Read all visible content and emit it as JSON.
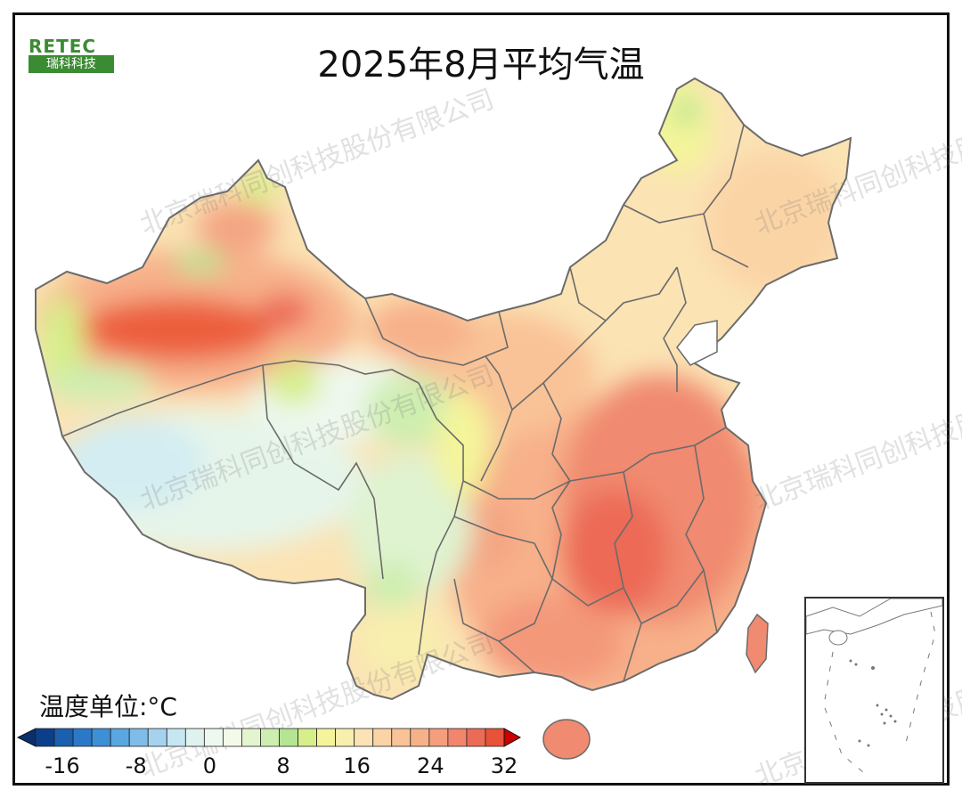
{
  "title": "2025年8月平均气温",
  "logo": {
    "mark": "RETEC",
    "name": "瑞科科技"
  },
  "watermark": "北京瑞科同创科技股份有限公司",
  "unit_label": "温度单位:°C",
  "legend": {
    "ticks": [
      "-16",
      "-8",
      "0",
      "8",
      "16",
      "24",
      "32"
    ],
    "colors": [
      "#0b3f8c",
      "#1a5fb0",
      "#2b78c8",
      "#3d8fd6",
      "#5aa6e0",
      "#7fbce8",
      "#a5d3ef",
      "#c6e6f2",
      "#dff2f0",
      "#eef8ee",
      "#f3fbe8",
      "#e3f5cf",
      "#cdeeb0",
      "#b5e592",
      "#d6ef8a",
      "#f4f59a",
      "#f8eeae",
      "#fbe3b4",
      "#fbd4a6",
      "#f9c397",
      "#f7b189",
      "#f59d7c",
      "#f1866d",
      "#ec6b57",
      "#e85236"
    ],
    "left_arrow_color": "#08306b",
    "right_arrow_color": "#cc0000"
  },
  "colors": {
    "hot": "#ef6a4f",
    "warm": "#f7b08a",
    "mild": "#fbe3b4",
    "cool_yellow": "#f4f59a",
    "green": "#b5e592",
    "pale": "#e6f5ea",
    "light_blue": "#cde9f0",
    "border": "#6b6b6b"
  }
}
